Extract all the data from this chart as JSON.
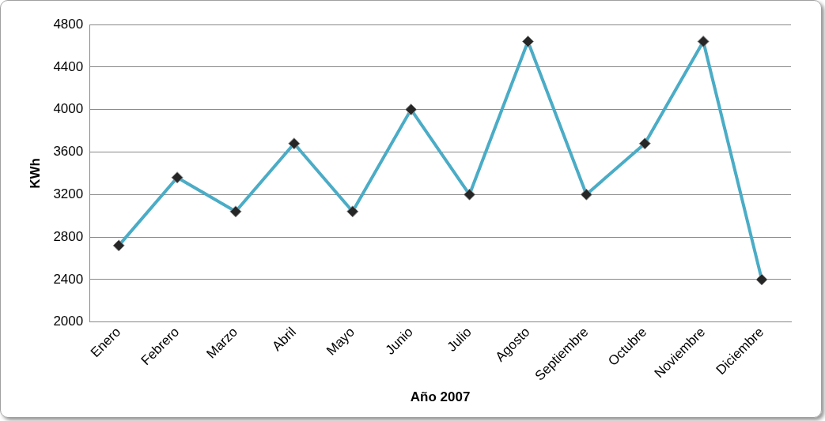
{
  "chart_data": {
    "type": "line",
    "xlabel": "Año 2007",
    "ylabel": "KWh",
    "categories": [
      "Enero",
      "Febrero",
      "Marzo",
      "Abril",
      "Mayo",
      "Junio",
      "Julio",
      "Agosto",
      "Septiembre",
      "Octubre",
      "Noviembre",
      "Diciembre"
    ],
    "series": [
      {
        "color": "#4bacc6",
        "values": [
          2720,
          3360,
          3040,
          3680,
          3040,
          4000,
          3200,
          4640,
          3200,
          3680,
          4640,
          2400
        ]
      }
    ],
    "ylim": [
      2000,
      4800
    ],
    "yticks": [
      2000,
      2400,
      2800,
      3200,
      3600,
      4000,
      4400,
      4800
    ],
    "grid": "y",
    "marker": "diamond",
    "line_style": "solid"
  }
}
